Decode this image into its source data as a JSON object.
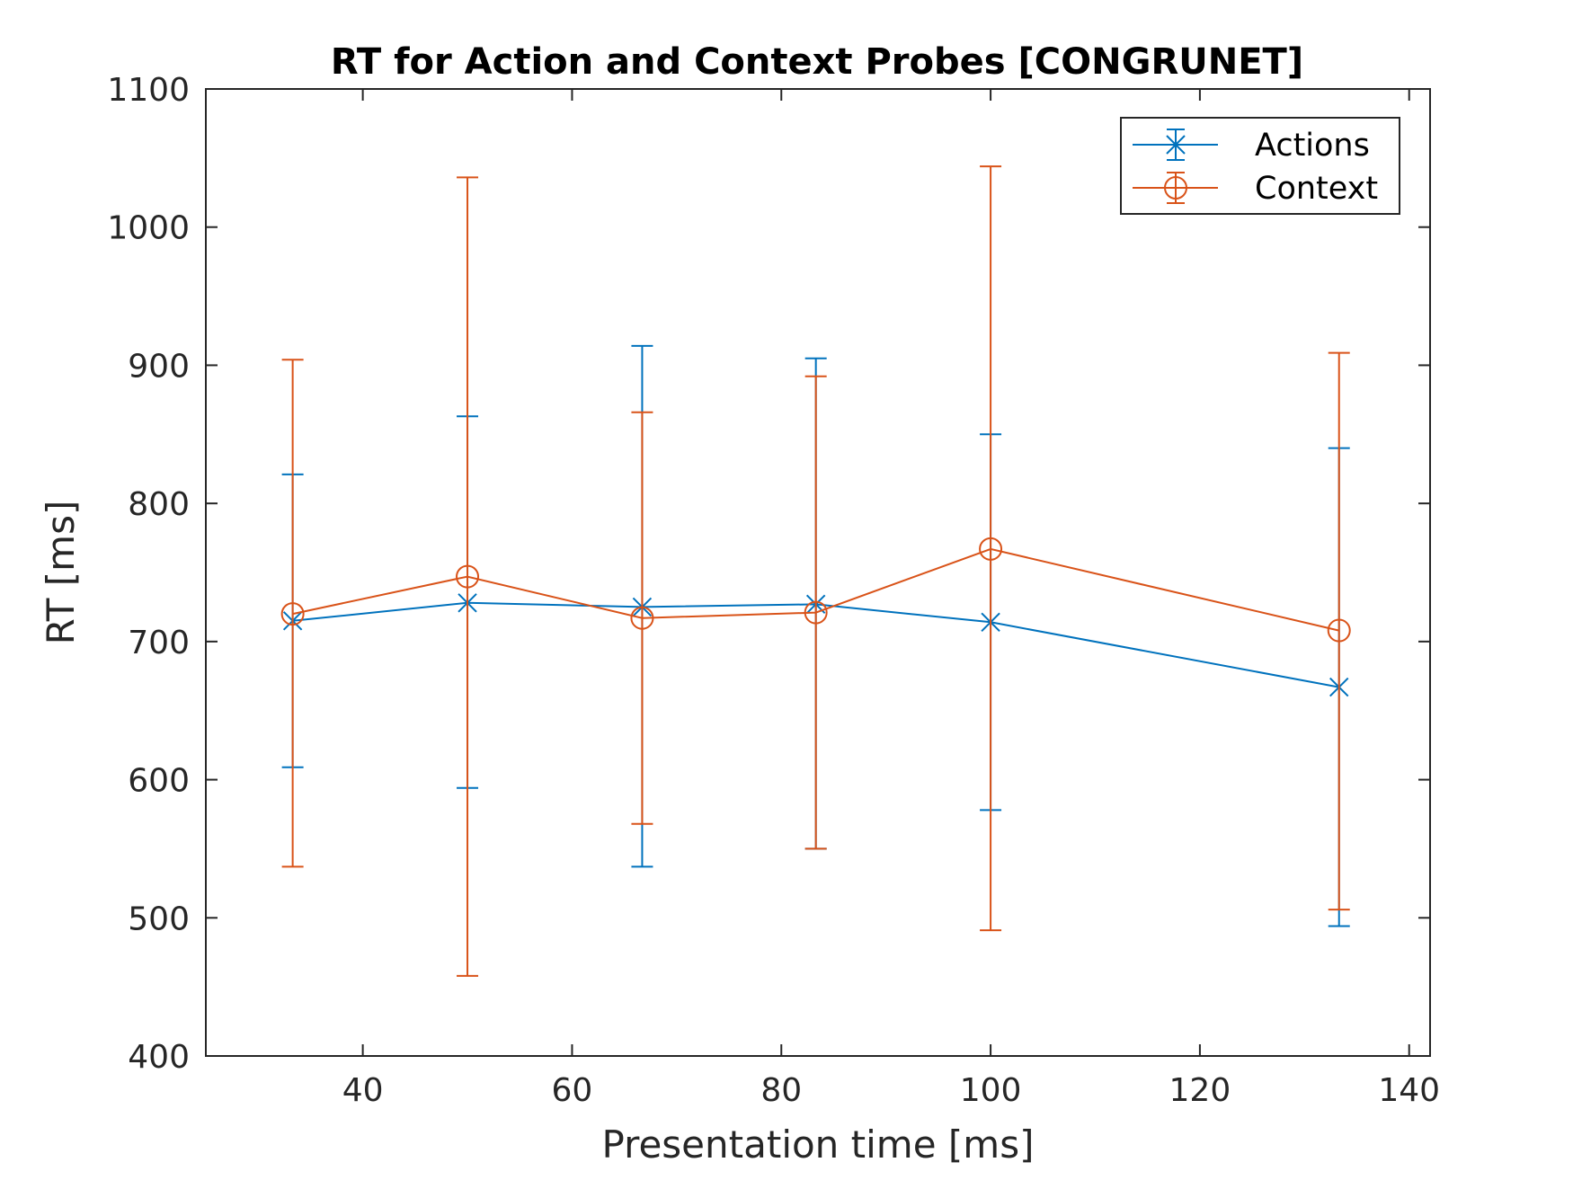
{
  "chart_data": {
    "type": "line",
    "title": "RT for Action and Context Probes [CONGRUNET]",
    "xlabel": "Presentation time [ms]",
    "ylabel": "RT [ms]",
    "xlim": [
      25,
      142
    ],
    "ylim": [
      400,
      1100
    ],
    "xticks": [
      40,
      60,
      80,
      100,
      120,
      140
    ],
    "yticks": [
      400,
      500,
      600,
      700,
      800,
      900,
      1000,
      1100
    ],
    "grid": false,
    "legend_position": "top-right",
    "x": [
      33.3,
      50,
      66.7,
      83.3,
      100,
      133.3
    ],
    "series": [
      {
        "name": "Actions",
        "color": "#0072BD",
        "marker": "x",
        "values": [
          715,
          728,
          725,
          727,
          714,
          667
        ],
        "error_low": [
          609,
          594,
          537,
          550,
          578,
          494
        ],
        "error_high": [
          821,
          863,
          914,
          905,
          850,
          840
        ]
      },
      {
        "name": "Context",
        "color": "#D95319",
        "marker": "o",
        "values": [
          720,
          747,
          717,
          721,
          767,
          708
        ],
        "error_low": [
          537,
          458,
          568,
          550,
          491,
          506
        ],
        "error_high": [
          904,
          1036,
          866,
          892,
          1044,
          909
        ]
      }
    ]
  }
}
